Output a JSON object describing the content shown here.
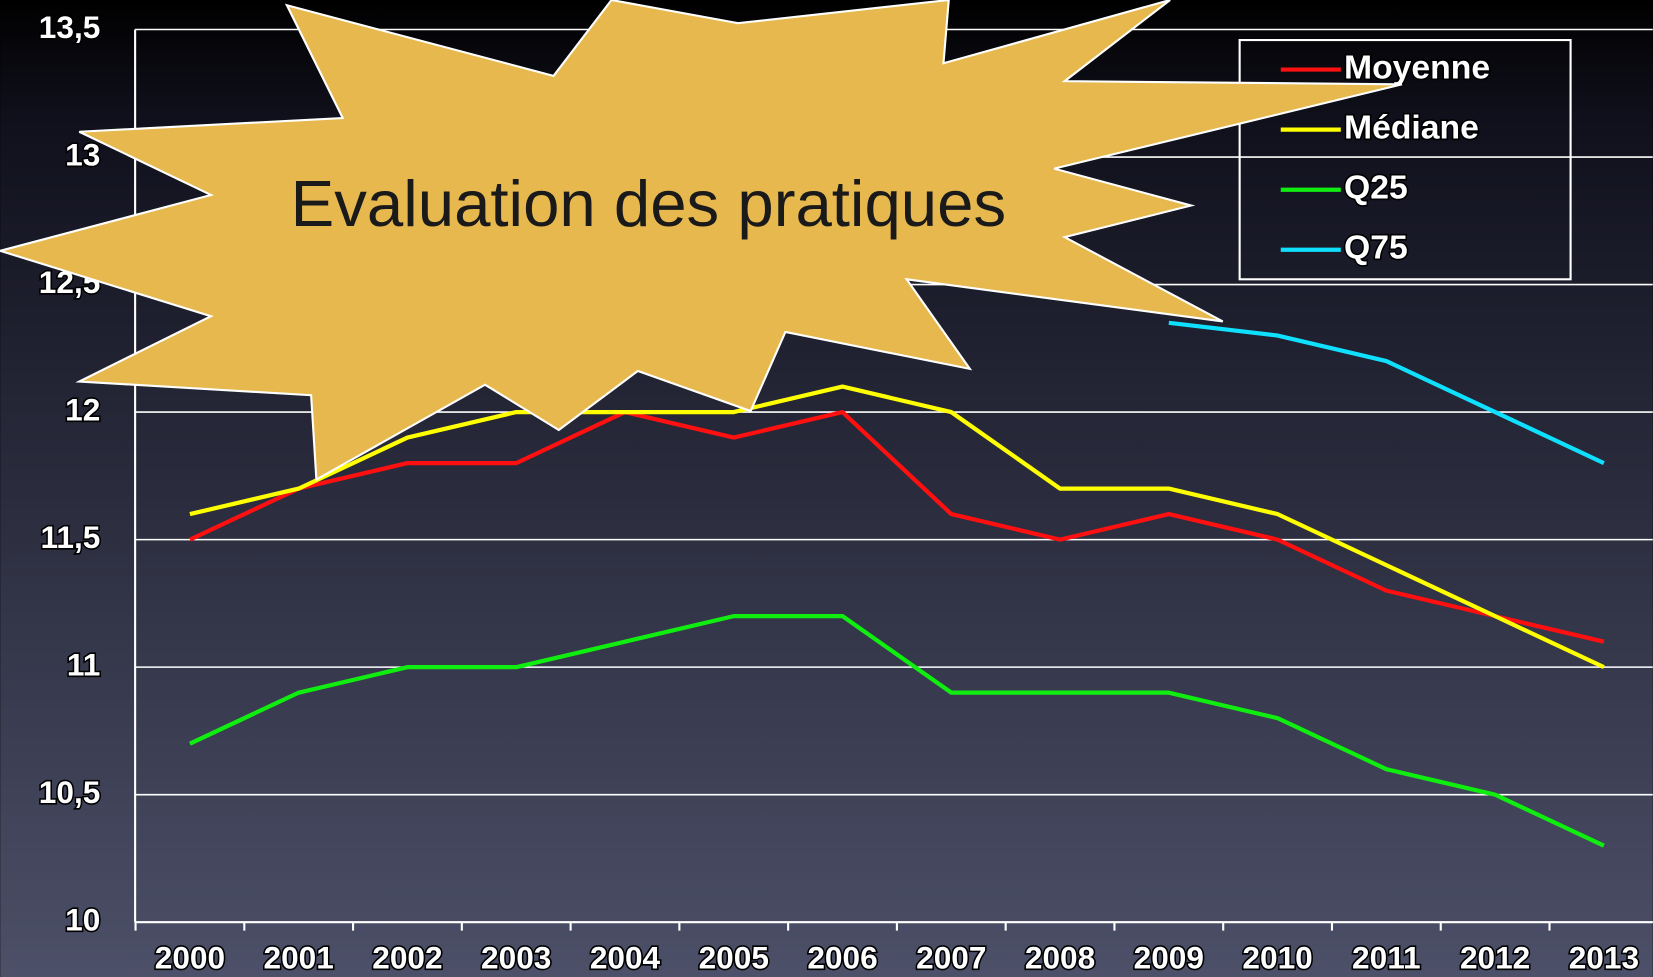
{
  "chart_data": {
    "type": "line",
    "annotation": "Evaluation des pratiques",
    "categories": [
      "2000",
      "2001",
      "2002",
      "2003",
      "2004",
      "2005",
      "2006",
      "2007",
      "2008",
      "2009",
      "2010",
      "2011",
      "2012",
      "2013"
    ],
    "series": [
      {
        "name": "Moyenne",
        "color": "#ff1010",
        "values": [
          11.5,
          11.7,
          11.8,
          11.8,
          12.0,
          11.9,
          12.0,
          11.6,
          11.5,
          11.6,
          11.5,
          11.3,
          11.2,
          11.1
        ]
      },
      {
        "name": "Médiane",
        "color": "#ffff00",
        "values": [
          11.6,
          11.7,
          11.9,
          12.0,
          12.0,
          12.0,
          12.1,
          12.0,
          11.7,
          11.7,
          11.6,
          11.4,
          11.2,
          11.0
        ]
      },
      {
        "name": "Q25",
        "color": "#10ee10",
        "values": [
          10.7,
          10.9,
          11.0,
          11.0,
          11.1,
          11.2,
          11.2,
          10.9,
          10.9,
          10.9,
          10.8,
          10.6,
          10.5,
          10.3
        ]
      },
      {
        "name": "Q75",
        "color": "#10e0ff",
        "values": [
          null,
          null,
          null,
          null,
          null,
          null,
          null,
          null,
          null,
          12.35,
          12.3,
          12.2,
          12.0,
          11.8
        ]
      }
    ],
    "ylim": [
      10,
      13.5
    ],
    "yticks": [
      10,
      {
        "value": 10.5,
        "label": "10,5"
      },
      11,
      {
        "value": 11.5,
        "label": "11,5"
      },
      12,
      {
        "value": 12.5,
        "label": "12,5"
      },
      13,
      {
        "value": 13.5,
        "label": "13,5"
      }
    ],
    "grid": true
  }
}
